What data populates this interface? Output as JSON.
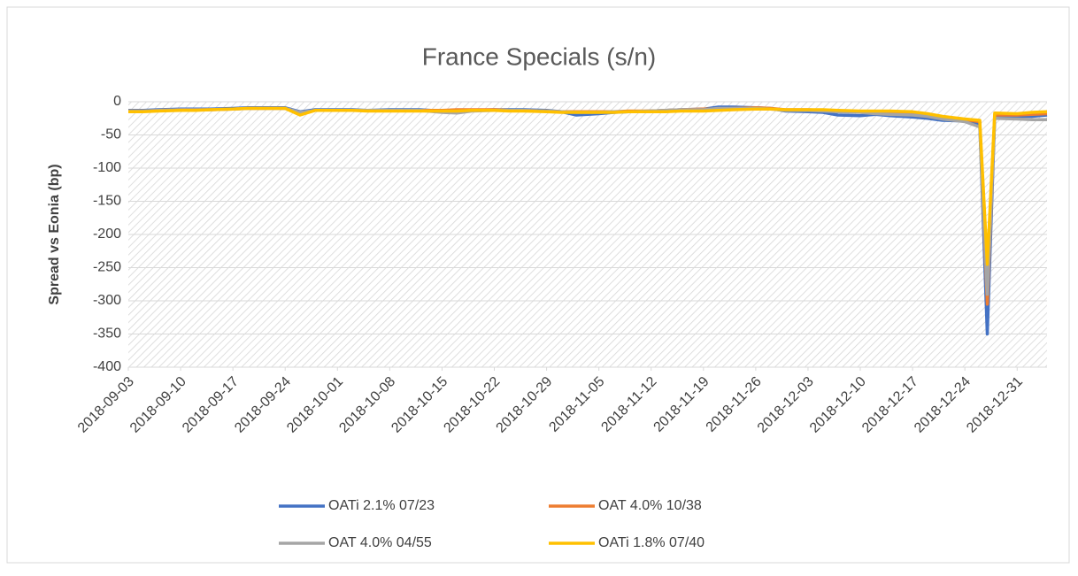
{
  "chart_data": {
    "type": "line",
    "title": "France Specials (s/n)",
    "y_label": "Spread vs Eonia (bp)",
    "x": [
      "2018-09-03",
      "2018-09-05",
      "2018-09-07",
      "2018-09-10",
      "2018-09-12",
      "2018-09-14",
      "2018-09-17",
      "2018-09-19",
      "2018-09-21",
      "2018-09-24",
      "2018-09-26",
      "2018-09-28",
      "2018-10-01",
      "2018-10-03",
      "2018-10-05",
      "2018-10-08",
      "2018-10-10",
      "2018-10-12",
      "2018-10-15",
      "2018-10-17",
      "2018-10-19",
      "2018-10-22",
      "2018-10-24",
      "2018-10-26",
      "2018-10-29",
      "2018-10-31",
      "2018-11-02",
      "2018-11-05",
      "2018-11-07",
      "2018-11-09",
      "2018-11-12",
      "2018-11-14",
      "2018-11-16",
      "2018-11-19",
      "2018-11-21",
      "2018-11-23",
      "2018-11-26",
      "2018-11-28",
      "2018-11-30",
      "2018-12-03",
      "2018-12-05",
      "2018-12-07",
      "2018-12-10",
      "2018-12-12",
      "2018-12-14",
      "2018-12-17",
      "2018-12-19",
      "2018-12-21",
      "2018-12-24",
      "2018-12-26",
      "2018-12-27",
      "2018-12-28",
      "2018-12-31",
      "2019-01-02",
      "2019-01-04"
    ],
    "series": [
      {
        "name": "OATi 2.1% 07/23",
        "color": "#4472c4",
        "values": [
          -13,
          -13,
          -12,
          -11,
          -11,
          -11,
          -10,
          -9,
          -9,
          -9,
          -15,
          -12,
          -12,
          -12,
          -13,
          -12,
          -12,
          -12,
          -14,
          -15,
          -13,
          -12,
          -12,
          -12,
          -13,
          -15,
          -20,
          -18,
          -16,
          -15,
          -14,
          -13,
          -12,
          -11,
          -8,
          -8,
          -9,
          -10,
          -14,
          -15,
          -16,
          -20,
          -21,
          -19,
          -21,
          -23,
          -25,
          -28,
          -29,
          -33,
          -350,
          -22,
          -22,
          -22,
          -20
        ]
      },
      {
        "name": "OAT 4.0% 10/38",
        "color": "#ed7d31",
        "values": [
          -14,
          -14,
          -13,
          -12,
          -12,
          -12,
          -11,
          -10,
          -10,
          -10,
          -17,
          -13,
          -13,
          -13,
          -13,
          -13,
          -13,
          -13,
          -13,
          -12,
          -12,
          -12,
          -13,
          -13,
          -14,
          -15,
          -15,
          -15,
          -15,
          -14,
          -14,
          -13,
          -12,
          -11,
          -11,
          -10,
          -9,
          -10,
          -12,
          -12,
          -13,
          -14,
          -15,
          -16,
          -17,
          -18,
          -20,
          -24,
          -27,
          -30,
          -305,
          -20,
          -20,
          -19,
          -18
        ]
      },
      {
        "name": "OAT 4.0% 04/55",
        "color": "#a5a5a5",
        "values": [
          -14,
          -14,
          -13,
          -12,
          -12,
          -12,
          -11,
          -10,
          -10,
          -10,
          -16,
          -13,
          -13,
          -13,
          -13,
          -13,
          -13,
          -13,
          -16,
          -17,
          -14,
          -13,
          -13,
          -13,
          -14,
          -15,
          -16,
          -16,
          -15,
          -15,
          -14,
          -13,
          -12,
          -12,
          -10,
          -10,
          -10,
          -11,
          -13,
          -13,
          -14,
          -15,
          -16,
          -18,
          -19,
          -20,
          -22,
          -26,
          -30,
          -38,
          -290,
          -25,
          -26,
          -27,
          -27
        ]
      },
      {
        "name": "OATi 1.8% 07/40",
        "color": "#ffc000",
        "values": [
          -15,
          -15,
          -14,
          -13,
          -13,
          -12,
          -11,
          -10,
          -10,
          -10,
          -20,
          -13,
          -13,
          -13,
          -14,
          -14,
          -14,
          -14,
          -14,
          -14,
          -13,
          -13,
          -14,
          -14,
          -15,
          -16,
          -16,
          -16,
          -16,
          -15,
          -15,
          -15,
          -14,
          -14,
          -13,
          -12,
          -11,
          -11,
          -12,
          -12,
          -12,
          -13,
          -14,
          -14,
          -14,
          -15,
          -18,
          -22,
          -26,
          -28,
          -245,
          -17,
          -18,
          -16,
          -15
        ]
      }
    ],
    "xlim": [
      "2018-09-03",
      "2019-01-04"
    ],
    "xticks": [
      "2018-09-03",
      "2018-09-10",
      "2018-09-17",
      "2018-09-24",
      "2018-10-01",
      "2018-10-08",
      "2018-10-15",
      "2018-10-22",
      "2018-10-29",
      "2018-11-05",
      "2018-11-12",
      "2018-11-19",
      "2018-11-26",
      "2018-12-03",
      "2018-12-10",
      "2018-12-17",
      "2018-12-24",
      "2018-12-31"
    ],
    "ylim": [
      -400,
      0
    ],
    "yticks": [
      0,
      -50,
      -100,
      -150,
      -200,
      -250,
      -300,
      -350,
      -400
    ],
    "grid": true,
    "legend": "bottom"
  }
}
